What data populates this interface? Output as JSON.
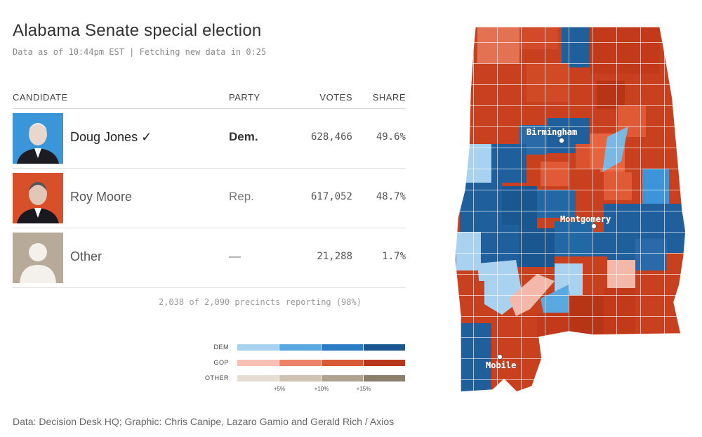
{
  "header": {
    "title": "Alabama Senate special election",
    "subtitle": "Data as of 10:44pm EST | Fetching new data in 0:25"
  },
  "table": {
    "columns": {
      "candidate": "CANDIDATE",
      "party": "PARTY",
      "votes": "VOTES",
      "share": "SHARE"
    },
    "rows": [
      {
        "name": "Doug Jones",
        "check": "✓",
        "party": "Dem.",
        "votes": "628,466",
        "share": "49.6%",
        "winner": true
      },
      {
        "name": "Roy Moore",
        "check": "",
        "party": "Rep.",
        "votes": "617,052",
        "share": "48.7%",
        "winner": false
      },
      {
        "name": "Other",
        "check": "",
        "party": "—",
        "votes": "21,288",
        "share": "1.7%",
        "winner": false
      }
    ]
  },
  "precincts": "2,038 of 2,090 precincts reporting (98%)",
  "legend": {
    "rows": [
      {
        "label": "DEM",
        "colors": [
          "#a8d2f0",
          "#5aa8e0",
          "#2a7cc4",
          "#1a5690"
        ]
      },
      {
        "label": "GOP",
        "colors": [
          "#f6c0b4",
          "#ec8266",
          "#d85a34",
          "#b8361a"
        ]
      },
      {
        "label": "OTHER",
        "colors": [
          "#e6ddd2",
          "#cfc2b2",
          "#b0a290",
          "#8c7e6c"
        ]
      }
    ],
    "ticks": [
      "+5%",
      "+10%",
      "+15%"
    ]
  },
  "map": {
    "cities": [
      "Birmingham",
      "Montgomery",
      "Mobile"
    ]
  },
  "credit": "Data: Decision Desk HQ; Graphic: Chris Canipe, Lazaro Gamio and Gerald Rich / Axios",
  "colors": {
    "dem_strong": "#1f5f9c",
    "dem_light": "#a8d2f0",
    "gop_strong": "#c8401e",
    "gop_light": "#f6c0b4"
  }
}
